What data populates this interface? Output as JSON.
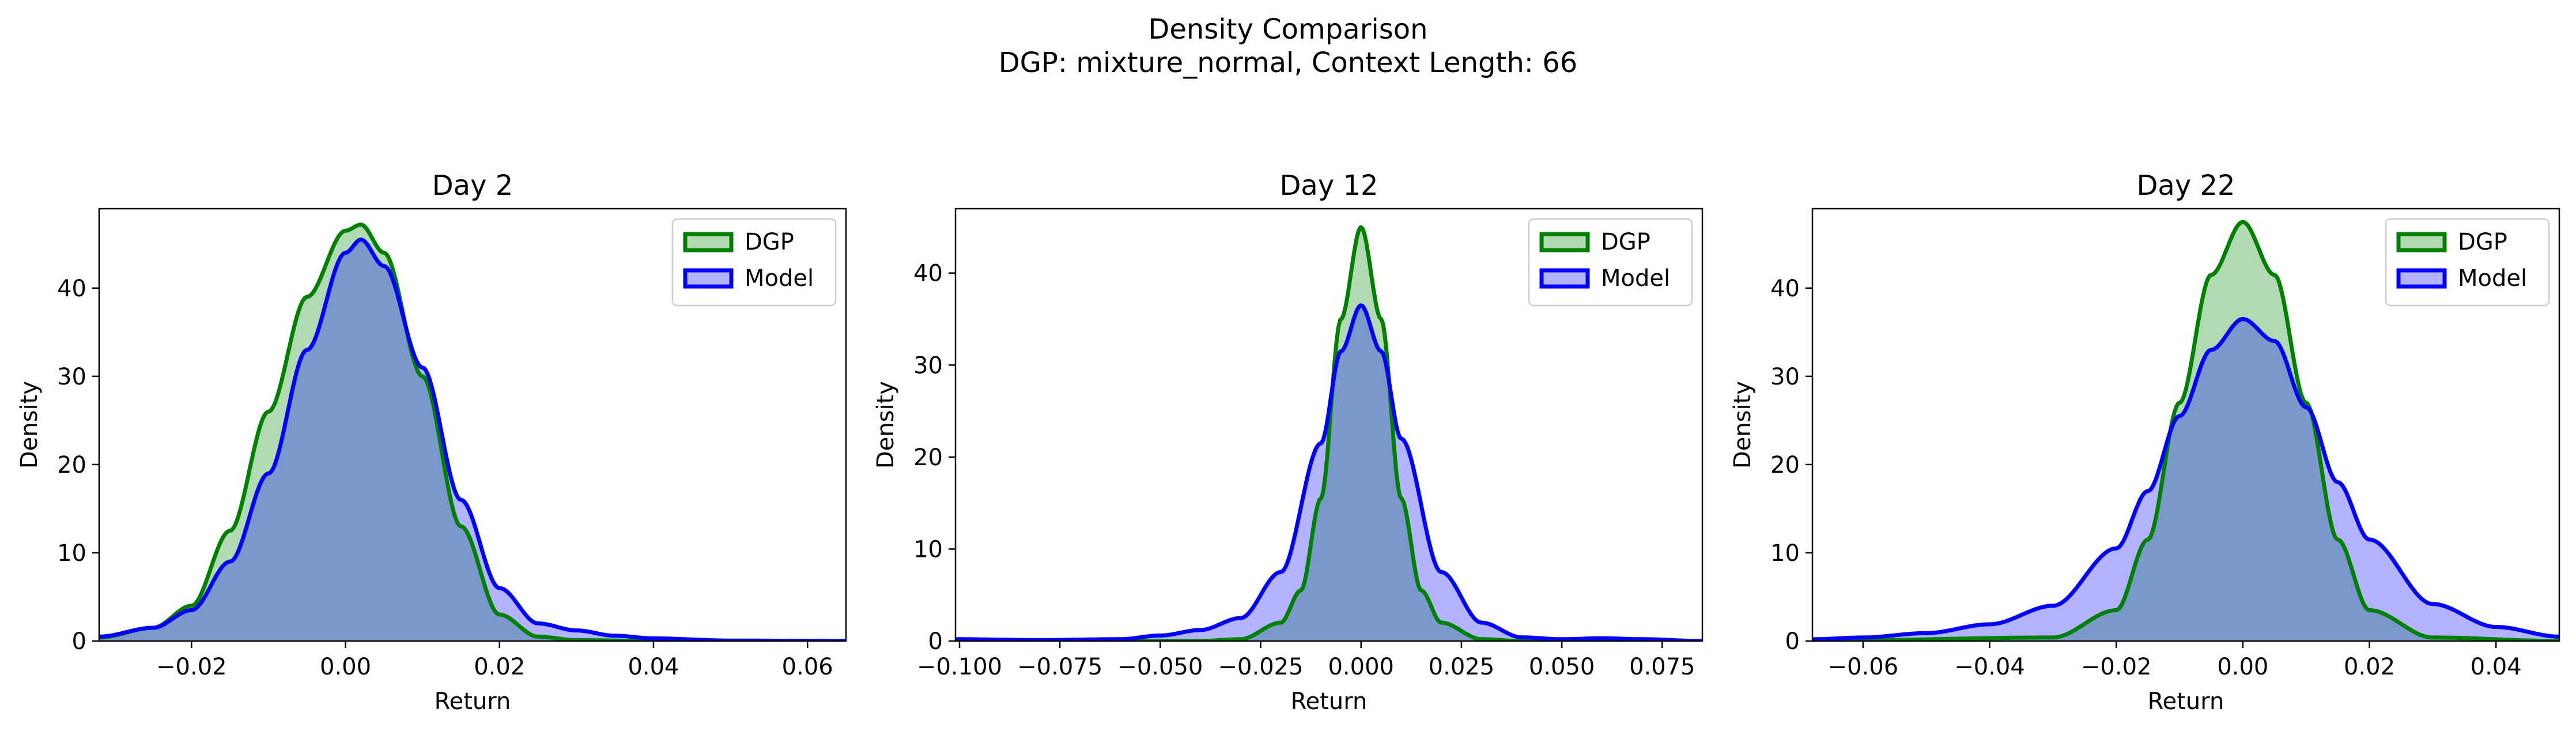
{
  "figure": {
    "suptitle_line1": "Density Comparison",
    "suptitle_line2": "DGP: mixture_normal, Context Length: 66"
  },
  "colors": {
    "dgp_line": "#008000",
    "dgp_fill": "#b2dab2",
    "model_line": "#0000ff",
    "model_fill": "#b3b3ff",
    "overlap_fill": "#7a98c9"
  },
  "chart_data": [
    {
      "type": "area",
      "title": "Day 2",
      "xlabel": "Return",
      "ylabel": "Density",
      "xlim": [
        -0.032,
        0.065
      ],
      "ylim": [
        0,
        49
      ],
      "xticks": [
        -0.02,
        0.0,
        0.02,
        0.04,
        0.06
      ],
      "xtick_labels": [
        "−0.02",
        "0.00",
        "0.02",
        "0.04",
        "0.06"
      ],
      "yticks": [
        0,
        10,
        20,
        30,
        40
      ],
      "ytick_labels": [
        "0",
        "10",
        "20",
        "30",
        "40"
      ],
      "legend": "top-right",
      "series": [
        {
          "name": "DGP",
          "x": [
            -0.032,
            -0.025,
            -0.02,
            -0.015,
            -0.01,
            -0.005,
            0.0,
            0.002,
            0.005,
            0.01,
            0.015,
            0.02,
            0.025,
            0.03,
            0.04,
            0.05,
            0.065
          ],
          "y": [
            0.4,
            1.5,
            4.0,
            12.5,
            26.0,
            39.0,
            46.5,
            47.2,
            44.0,
            30.0,
            13.0,
            3.0,
            0.5,
            0.1,
            0.0,
            0.0,
            0.0
          ]
        },
        {
          "name": "Model",
          "x": [
            -0.032,
            -0.025,
            -0.02,
            -0.015,
            -0.01,
            -0.005,
            0.0,
            0.002,
            0.005,
            0.01,
            0.015,
            0.02,
            0.025,
            0.03,
            0.035,
            0.04,
            0.05,
            0.065
          ],
          "y": [
            0.5,
            1.5,
            3.5,
            9.0,
            19.0,
            33.0,
            44.0,
            45.5,
            42.5,
            31.0,
            16.0,
            6.0,
            2.0,
            1.2,
            0.6,
            0.3,
            0.05,
            0.0
          ]
        }
      ]
    },
    {
      "type": "area",
      "title": "Day 12",
      "xlabel": "Return",
      "ylabel": "Density",
      "xlim": [
        -0.101,
        0.085
      ],
      "ylim": [
        0,
        47
      ],
      "xticks": [
        -0.1,
        -0.075,
        -0.05,
        -0.025,
        0.0,
        0.025,
        0.05,
        0.075
      ],
      "xtick_labels": [
        "−0.100",
        "−0.075",
        "−0.050",
        "−0.025",
        "0.000",
        "0.025",
        "0.050",
        "0.075"
      ],
      "yticks": [
        0,
        10,
        20,
        30,
        40
      ],
      "ytick_labels": [
        "0",
        "10",
        "20",
        "30",
        "40"
      ],
      "legend": "top-right",
      "series": [
        {
          "name": "DGP",
          "x": [
            -0.101,
            -0.04,
            -0.03,
            -0.02,
            -0.015,
            -0.01,
            -0.005,
            0.0,
            0.005,
            0.01,
            0.015,
            0.02,
            0.03,
            0.04,
            0.085
          ],
          "y": [
            0.0,
            0.0,
            0.2,
            2.0,
            5.5,
            15.5,
            35.0,
            45.0,
            35.0,
            15.5,
            5.5,
            2.0,
            0.2,
            0.0,
            0.0
          ]
        },
        {
          "name": "Model",
          "x": [
            -0.101,
            -0.08,
            -0.06,
            -0.05,
            -0.04,
            -0.03,
            -0.02,
            -0.01,
            -0.005,
            0.0,
            0.005,
            0.01,
            0.02,
            0.03,
            0.04,
            0.05,
            0.06,
            0.07,
            0.085
          ],
          "y": [
            0.2,
            0.1,
            0.2,
            0.6,
            1.2,
            2.5,
            7.5,
            21.5,
            31.5,
            36.5,
            31.5,
            22.0,
            7.5,
            2.0,
            0.4,
            0.2,
            0.3,
            0.2,
            0.0
          ]
        }
      ]
    },
    {
      "type": "area",
      "title": "Day 22",
      "xlabel": "Return",
      "ylabel": "Density",
      "xlim": [
        -0.068,
        0.05
      ],
      "ylim": [
        0,
        49
      ],
      "xticks": [
        -0.06,
        -0.04,
        -0.02,
        0.0,
        0.02,
        0.04
      ],
      "xtick_labels": [
        "−0.06",
        "−0.04",
        "−0.02",
        "0.00",
        "0.02",
        "0.04"
      ],
      "yticks": [
        0,
        10,
        20,
        30,
        40
      ],
      "ytick_labels": [
        "0",
        "10",
        "20",
        "30",
        "40"
      ],
      "legend": "top-right",
      "series": [
        {
          "name": "DGP",
          "x": [
            -0.068,
            -0.03,
            -0.02,
            -0.015,
            -0.01,
            -0.005,
            0.0,
            0.005,
            0.01,
            0.015,
            0.02,
            0.03,
            0.05
          ],
          "y": [
            0.0,
            0.4,
            3.5,
            11.5,
            27.0,
            41.5,
            47.5,
            41.5,
            27.0,
            11.5,
            3.5,
            0.4,
            0.0
          ]
        },
        {
          "name": "Model",
          "x": [
            -0.068,
            -0.06,
            -0.05,
            -0.04,
            -0.03,
            -0.02,
            -0.015,
            -0.01,
            -0.005,
            0.0,
            0.005,
            0.01,
            0.015,
            0.02,
            0.03,
            0.04,
            0.05
          ],
          "y": [
            0.2,
            0.4,
            0.9,
            1.9,
            4.0,
            10.5,
            17.0,
            25.5,
            33.0,
            36.5,
            34.0,
            26.5,
            18.0,
            11.5,
            4.2,
            1.6,
            0.5
          ]
        }
      ]
    }
  ]
}
